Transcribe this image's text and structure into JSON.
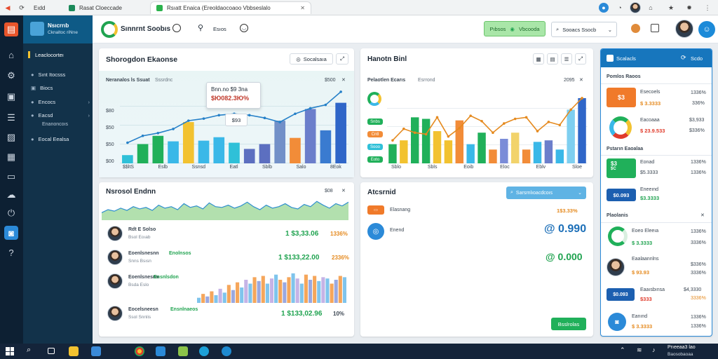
{
  "browser": {
    "tabs": [
      {
        "label": "Eıdd"
      },
      {
        "label": "Rasat Cloeccade"
      },
      {
        "label": "Rsıatt Enaica (Ereoldaocoaoo Vbbseslalo"
      }
    ]
  },
  "sidebar": {
    "brand_title": "Nsıcrrıb",
    "brand_subtitle": "Cknaltoc riNrıe",
    "section_label": "Leaclocorteı",
    "items": [
      {
        "label": "Sınt Itocsss"
      },
      {
        "label": "Biocs"
      },
      {
        "label": "Encocs"
      },
      {
        "label": "Eacsd"
      },
      {
        "label": "Enanoncoıs"
      },
      {
        "label": "Eocal Eealsa"
      }
    ]
  },
  "topbar": {
    "app_name": "Sınnrnt Soobıs",
    "menu_label": "Esıos",
    "pill_label": "Pıbsos",
    "pill_button": "Vbcooda",
    "search_label": "Sooacs Ssocb"
  },
  "card1": {
    "title": "Shorogdon Ekaonse",
    "subtitle": "Neranalos ls Ssuat",
    "subtitle2": "Sssrdnc",
    "amount": "$500",
    "toolbar_button": "Socalsaıa",
    "tooltip_line1": "Bnn.no $9 3na",
    "tooltip_line2": "$Ю082.3Ю%",
    "badge": "$93",
    "x_labels": [
      "$$ltS",
      "Eslb",
      "Ssnsd",
      "Eatl",
      "Sblb",
      "Salo",
      "8Eok"
    ],
    "y_labels": [
      "$80",
      "$50",
      "$50",
      "$00"
    ],
    "chart_data": {
      "type": "bar",
      "categories": [
        "1",
        "2",
        "3",
        "4",
        "5",
        "6",
        "7",
        "8",
        "9",
        "10",
        "11",
        "12",
        "13",
        "14",
        "15"
      ],
      "series": [
        {
          "values": [
            12,
            28,
            40,
            32,
            60,
            33,
            38,
            30,
            21,
            28,
            62,
            37,
            79,
            48,
            88
          ],
          "color_list": [
            "#2fc0d8",
            "#20b05a",
            "#20b05a",
            "#3ab8e8",
            "#f2c230",
            "#3ab8e8",
            "#3ab8e8",
            "#2fc0d8",
            "#5c6fc0",
            "#5c6fc0",
            "#7290c8",
            "#f28c38",
            "#6b7ecb",
            "#3a7bd0",
            "#2f66c8"
          ]
        },
        {
          "values": [
            30,
            40,
            44,
            50,
            62,
            65,
            70,
            72,
            70,
            66,
            60,
            72,
            80,
            85,
            104
          ],
          "line": true,
          "color": "#2580c8"
        }
      ]
    }
  },
  "card2": {
    "title": "Hanotn Binl",
    "subtitle": "Pelaotlen Ecarıs",
    "subtitle2": "Esrrond",
    "amount": "2095",
    "legend": [
      "Snbs",
      "Cntl",
      "Sooo",
      "Eoto"
    ],
    "x_labels": [
      "Sblo",
      "Sbls",
      "Eoib",
      "Eloc",
      "Eblv",
      "Sloe"
    ],
    "chart_data": {
      "type": "bar",
      "categories": [
        "1",
        "2",
        "3",
        "4",
        "5",
        "6",
        "7",
        "8",
        "9",
        "10",
        "11",
        "12",
        "13",
        "14",
        "15",
        "16",
        "17",
        "18"
      ],
      "series": [
        {
          "values": [
            25,
            30,
            60,
            58,
            42,
            30,
            56,
            25,
            40,
            18,
            32,
            40,
            18,
            28,
            30,
            18,
            70,
            85
          ],
          "color_list": [
            "#20b05a",
            "#f2c230",
            "#20b05a",
            "#20b05a",
            "#f2c230",
            "#f2c230",
            "#f28c38",
            "#3ab8e8",
            "#20b05a",
            "#f28c38",
            "#7a8cd8",
            "#f2d36b",
            "#f28c38",
            "#3ab8e8",
            "#6b7ecb",
            "#3ab8e8",
            "#7ecff0",
            "#2f66c8"
          ]
        },
        {
          "values": [
            30,
            45,
            40,
            38,
            60,
            35,
            46,
            62,
            55,
            40,
            52,
            58,
            60,
            42,
            54,
            50,
            70,
            85
          ],
          "line": true,
          "color": "#e58a1f"
        }
      ]
    }
  },
  "card3": {
    "title": "Nsrosol Endnn",
    "amount": "$08",
    "rows": [
      {
        "name": "Rdt E Solso",
        "sub": "Bsol Eoıab",
        "amount": "1 $3,33.06",
        "pct": "1336%"
      },
      {
        "name": "Eoenlsnesnn",
        "name2": "Enolnsos",
        "sub": "Snns Bsısn",
        "amount": "1 $133,22.00",
        "pct": "2336%"
      },
      {
        "name": "Eoenlsnesnn",
        "name2": "Ensnlsdon",
        "sub": "Bsda Eslo",
        "amount": "",
        "pct": ""
      },
      {
        "name": "Eocelsneesn",
        "name2": "Ensnlnaeos",
        "sub": "Ssol Snnlis",
        "amount": "1 $133,02.96",
        "pct": "10%"
      }
    ],
    "area_values": [
      10,
      14,
      12,
      16,
      13,
      18,
      15,
      17,
      13,
      20,
      16,
      18,
      14,
      22,
      17,
      19,
      15,
      23,
      18,
      17,
      20,
      16,
      19,
      24,
      18,
      14,
      20,
      16,
      18,
      22,
      17,
      15,
      21,
      18,
      25,
      20,
      16,
      22,
      19,
      24
    ],
    "bar_values": [
      8,
      14,
      10,
      18,
      12,
      22,
      16,
      28,
      20,
      32,
      24,
      36,
      30,
      40,
      34,
      42,
      30,
      38,
      44,
      36,
      32,
      40,
      46,
      38,
      30,
      44,
      36,
      42,
      34,
      40,
      38,
      30,
      36,
      42,
      40
    ]
  },
  "card4": {
    "title": "Atcsrnid",
    "search_placeholder": "Sarsrnlıoacdcoıs",
    "row1_label": "Elasnang",
    "row1_value": "1$3.33%",
    "row2_label": "Enend",
    "big_value_1": "@ 0.990",
    "big_value_2": "@ 0.000",
    "button_label": "Bsslrolas"
  },
  "rightpanel": {
    "header_label": "Scalacls",
    "header_button": "Scdo",
    "section1": "Pomlos Raoos",
    "items1": [
      {
        "badge": "$3",
        "name": "Esecoels",
        "value": "$ 3.3333",
        "pct1": "1336%",
        "pct2": "336%"
      },
      {
        "name": "Eacoaaa",
        "value": "$ 23.9.533",
        "pct1": "$3,933",
        "pct2": "$336%"
      }
    ],
    "section2": "Pstarın Eaoalaa",
    "items2": [
      {
        "badge": "$3",
        "sub": "$C",
        "name": "Eonad",
        "value": "$5.3333",
        "pct1": "1336%",
        "pct2": "1336%"
      },
      {
        "badge": "$0.093",
        "name": "Eneeınd",
        "value": "$3.3333",
        "pct1": "",
        "pct2": ""
      }
    ],
    "section3": "Plaolanis",
    "items3": [
      {
        "name": "Eoeo Eleeıa",
        "value": "$ 3.3333",
        "pct1": "1336%",
        "pct2": "3336%"
      },
      {
        "name": "Eaalaannlns",
        "value": "$ 93.93",
        "pct1": "$336%",
        "pct2": "3336%"
      },
      {
        "badge": "$0.093",
        "name": "Eaaısbınsa",
        "value": "$333",
        "pct1": "$4,3330",
        "pct2": "3336%"
      },
      {
        "name": "Eanınd",
        "value": "$ 3.3333",
        "pct1": "1336%",
        "pct2": "1336%"
      }
    ]
  },
  "taskbar": {
    "clock_time": "Prıeeaa3 lao",
    "clock_date": "Baosobaoaa"
  },
  "colors": {
    "green": "#20a350",
    "red": "#e03b2b",
    "blue": "#1c6fb8",
    "orange": "#e58a1f"
  }
}
